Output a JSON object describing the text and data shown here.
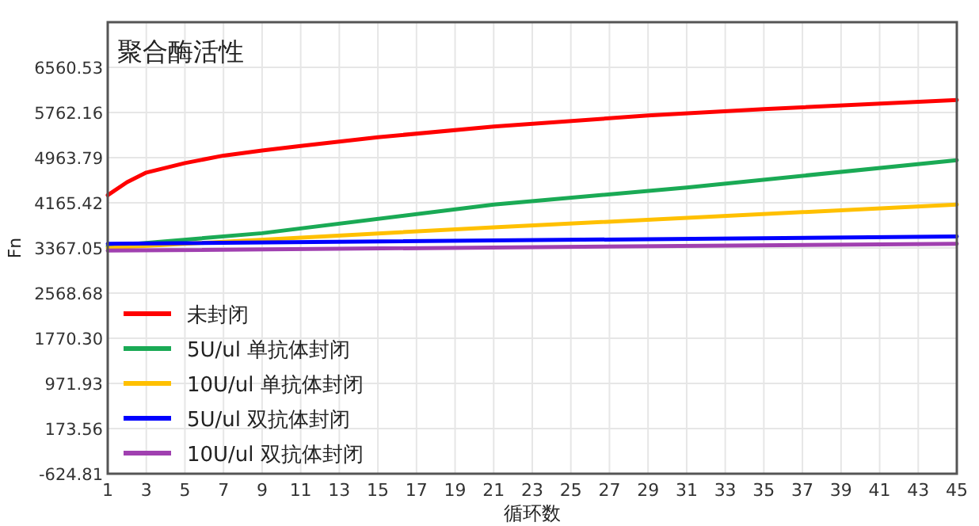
{
  "chart_data": {
    "type": "line",
    "title": "聚合酶活性",
    "xlabel": "循环数",
    "ylabel": "Fn",
    "xlim": [
      1,
      45
    ],
    "xticks": [
      1,
      3,
      5,
      7,
      9,
      11,
      13,
      15,
      17,
      19,
      21,
      23,
      25,
      27,
      29,
      31,
      33,
      35,
      37,
      39,
      41,
      43,
      45
    ],
    "ylim": [
      -624.81,
      7359
    ],
    "yticks": [
      -624.81,
      173.56,
      971.93,
      {
        "value": 1770.3,
        "label": "1770.30"
      },
      2568.68,
      3367.05,
      4165.42,
      4963.79,
      5762.16,
      6560.53
    ],
    "grid": true,
    "legend": "bottom left",
    "marker": "none",
    "line_style": "solid",
    "series": [
      {
        "name": "未封闭",
        "color": "#ff0000",
        "x": [
          1,
          2,
          3,
          5,
          7,
          9,
          11,
          15,
          21,
          29,
          35,
          45
        ],
        "values": [
          4300,
          4530,
          4700,
          4868,
          5000,
          5090,
          5170,
          5325,
          5513,
          5710,
          5823,
          5983
        ]
      },
      {
        "name": "5U/ul 单抗体封闭",
        "color": "#1aaa55",
        "x": [
          1,
          9,
          21,
          31,
          45
        ],
        "values": [
          3400,
          3628,
          4134,
          4435,
          4920
        ]
      },
      {
        "name": "10U/ul 单抗体封闭",
        "color": "#ffc000",
        "x": [
          1,
          21,
          45
        ],
        "values": [
          3367,
          3732,
          4134
        ]
      },
      {
        "name": "5U/ul 双抗体封闭",
        "color": "#0000ff",
        "x": [
          1,
          45
        ],
        "values": [
          3440,
          3570
        ]
      },
      {
        "name": "10U/ul 双抗体封闭",
        "color": "#a040b0",
        "x": [
          1,
          45
        ],
        "values": [
          3320,
          3440
        ]
      }
    ]
  }
}
